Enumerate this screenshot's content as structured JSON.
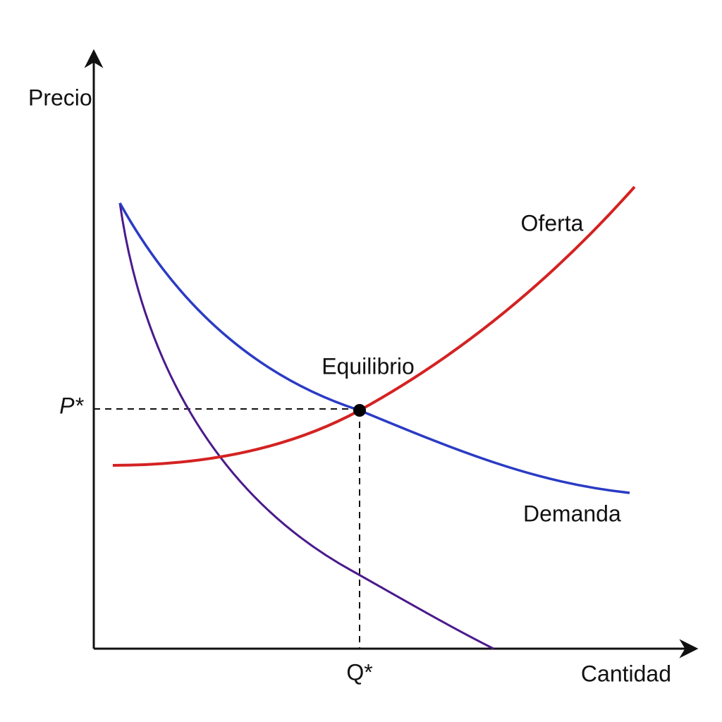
{
  "axes": {
    "y_label": "Precio",
    "x_label": "Cantidad"
  },
  "equilibrium": {
    "label": "Equilibrio",
    "price_label": "P*",
    "quantity_label": "Q*"
  },
  "curves": {
    "supply": "Oferta",
    "demand": "Demanda"
  }
}
